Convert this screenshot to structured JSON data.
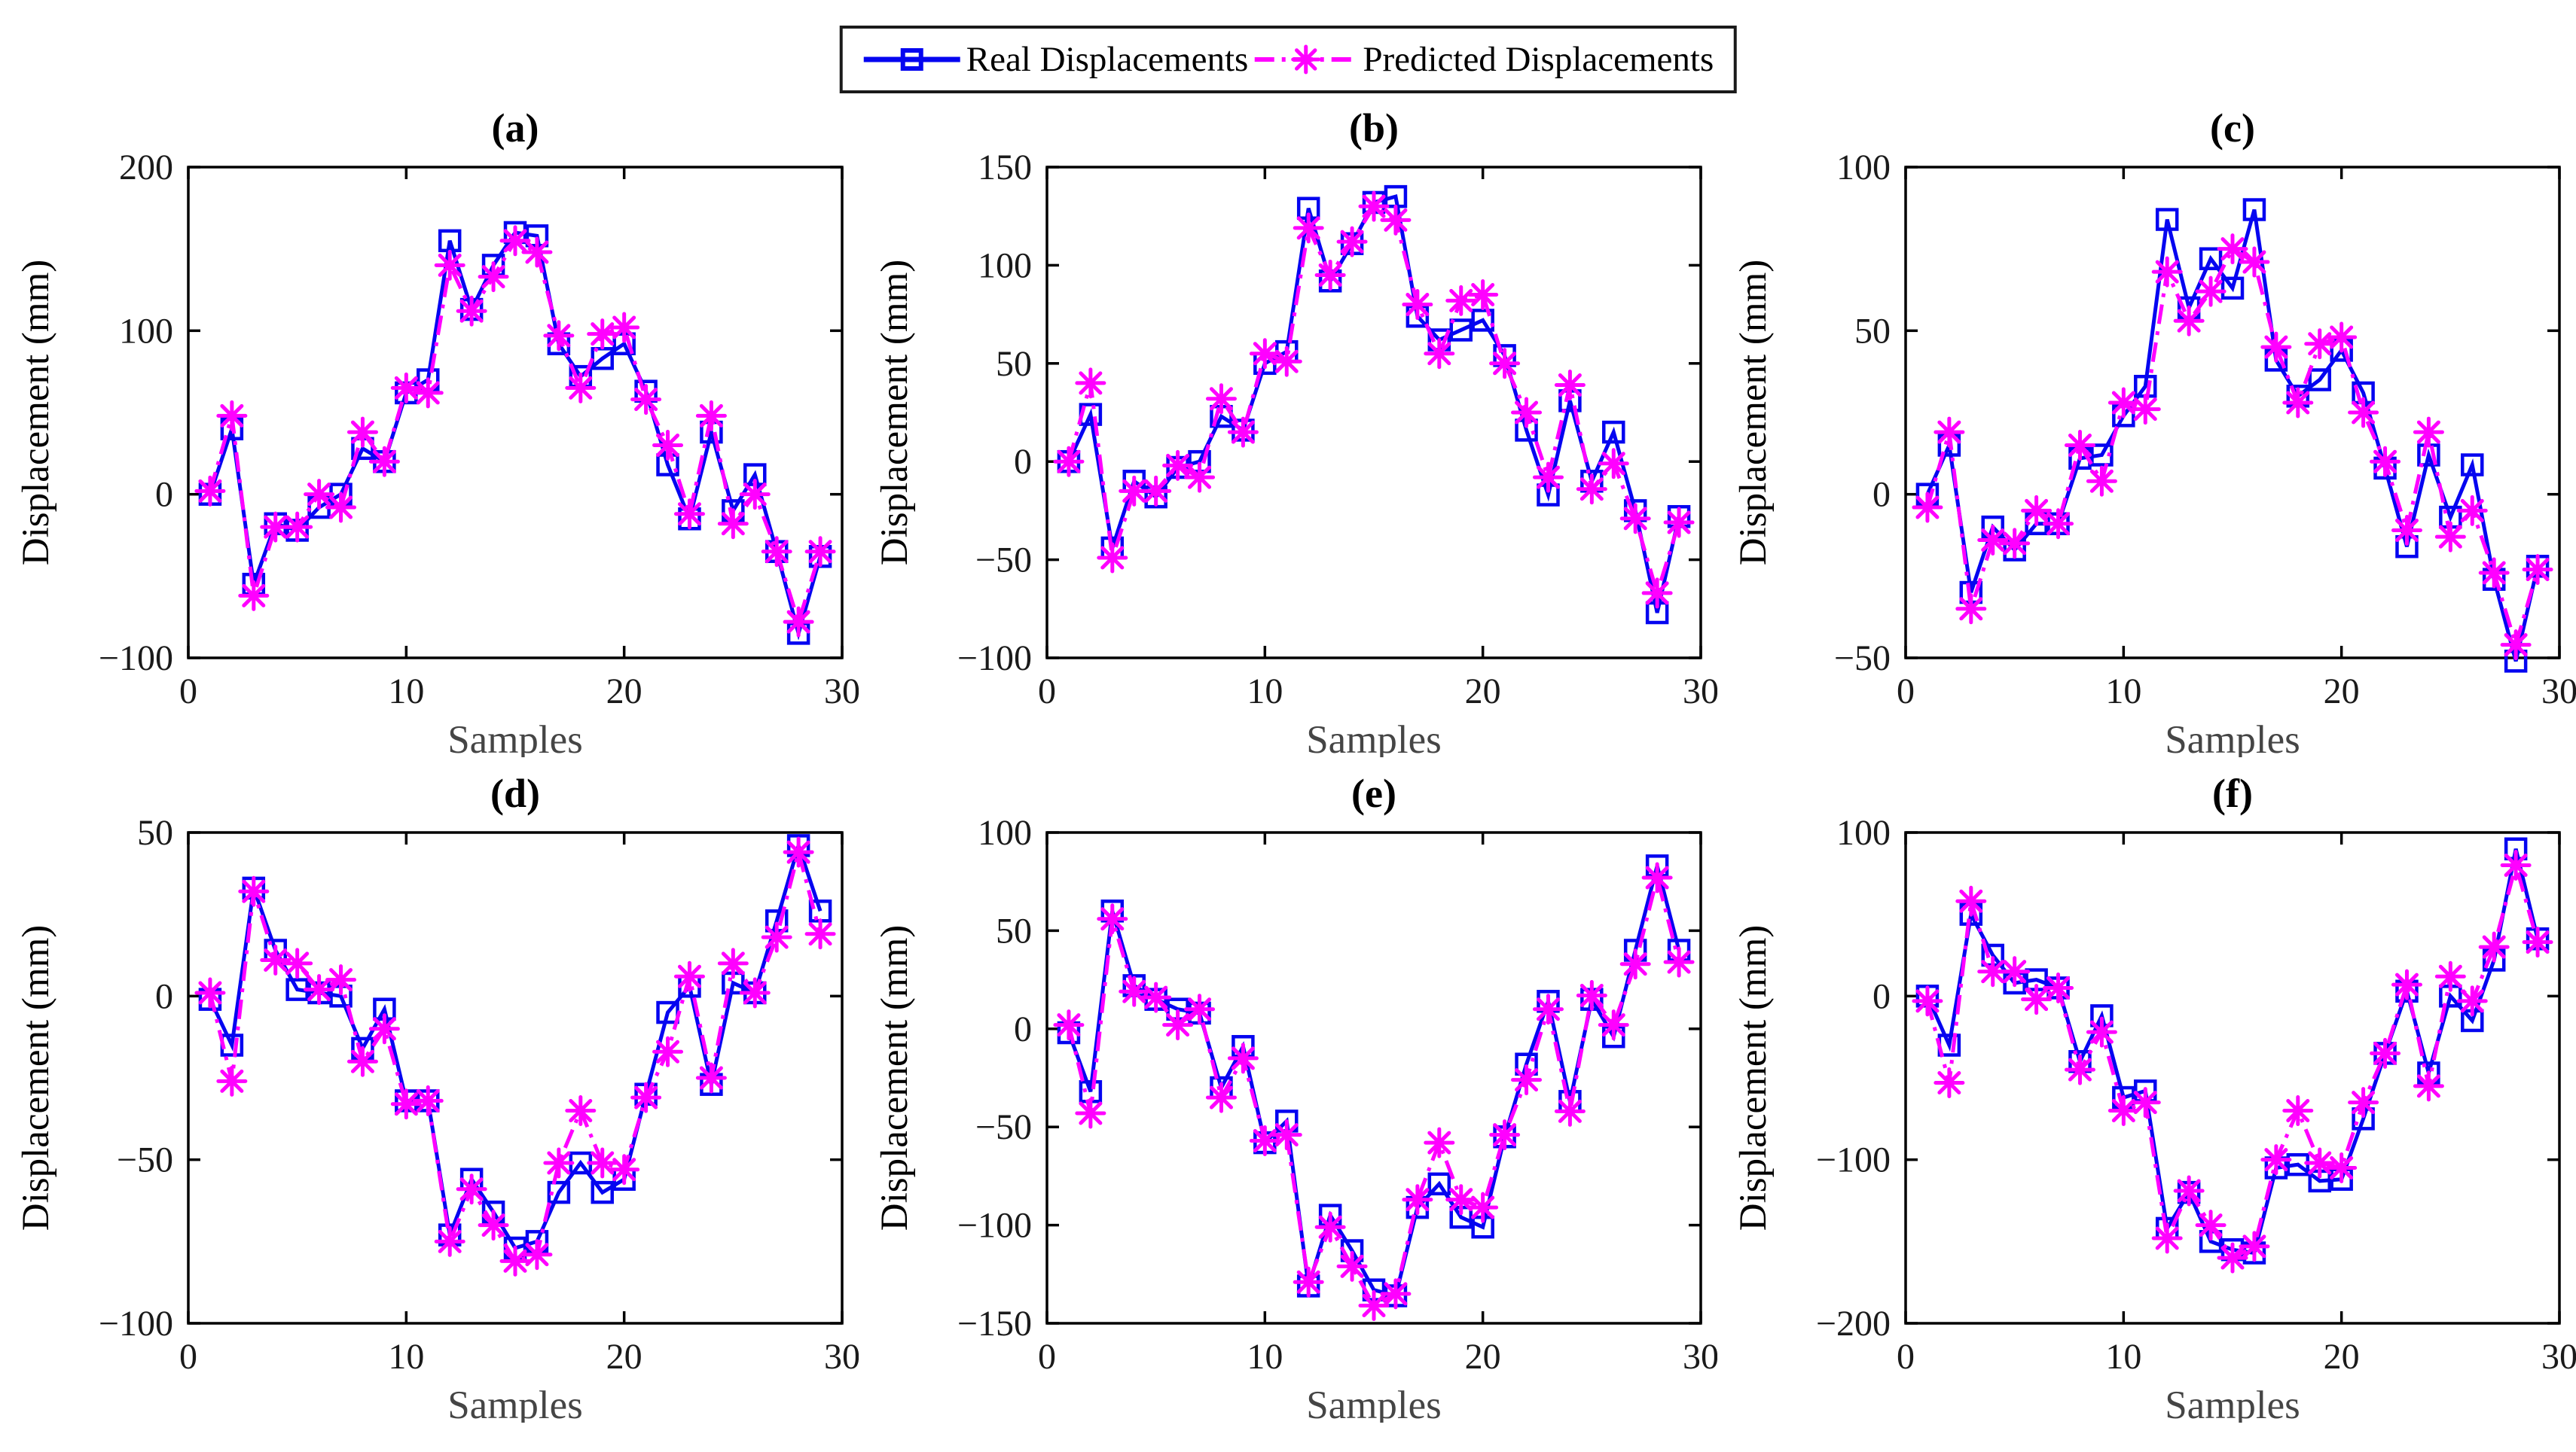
{
  "legend": {
    "items": [
      {
        "label": "Real Displacements",
        "series": "real",
        "line": "solid",
        "marker": "square"
      },
      {
        "label": "Predicted Displacements",
        "series": "predicted",
        "line": "dash-dot",
        "marker": "asterisk"
      }
    ]
  },
  "colors": {
    "real": "#0505f0",
    "predicted": "#ff00ff",
    "axis": "#000000",
    "tick_text": "#1a1a1a",
    "xlabel_text": "#454545"
  },
  "chart_data": [
    {
      "type": "line",
      "title": "(a)",
      "xlabel": "Samples",
      "ylabel": "Displacement (mm)",
      "xlim": [
        0,
        30
      ],
      "ylim": [
        -100,
        200
      ],
      "xticks": [
        0,
        10,
        20,
        30
      ],
      "yticks": [
        -100,
        0,
        100,
        200
      ],
      "x": [
        1,
        2,
        3,
        4,
        5,
        6,
        7,
        8,
        9,
        10,
        11,
        12,
        13,
        14,
        15,
        16,
        17,
        18,
        19,
        20,
        21,
        22,
        23,
        24,
        25,
        26,
        27,
        28,
        29
      ],
      "series": [
        {
          "name": "Real Displacements",
          "color_key": "real",
          "values": [
            0,
            40,
            -55,
            -18,
            -22,
            -8,
            0,
            28,
            20,
            62,
            70,
            155,
            113,
            140,
            160,
            158,
            92,
            72,
            83,
            92,
            63,
            18,
            -15,
            38,
            -10,
            12,
            -35,
            -85,
            -38
          ]
        },
        {
          "name": "Predicted Displacements",
          "color_key": "predicted",
          "values": [
            2,
            48,
            -62,
            -20,
            -20,
            0,
            -8,
            38,
            20,
            65,
            62,
            140,
            112,
            133,
            155,
            148,
            97,
            65,
            98,
            102,
            58,
            30,
            -12,
            48,
            -18,
            0,
            -35,
            -78,
            -35
          ]
        }
      ]
    },
    {
      "type": "line",
      "title": "(b)",
      "xlabel": "Samples",
      "ylabel": "Displacement (mm)",
      "xlim": [
        0,
        30
      ],
      "ylim": [
        -100,
        150
      ],
      "xticks": [
        0,
        10,
        20,
        30
      ],
      "yticks": [
        -100,
        -50,
        0,
        50,
        100,
        150
      ],
      "x": [
        1,
        2,
        3,
        4,
        5,
        6,
        7,
        8,
        9,
        10,
        11,
        12,
        13,
        14,
        15,
        16,
        17,
        18,
        19,
        20,
        21,
        22,
        23,
        24,
        25,
        26,
        27,
        28,
        29
      ],
      "series": [
        {
          "name": "Real Displacements",
          "color_key": "real",
          "values": [
            0,
            24,
            -44,
            -10,
            -18,
            -3,
            0,
            23,
            16,
            50,
            56,
            129,
            92,
            111,
            132,
            135,
            74,
            62,
            67,
            72,
            54,
            16,
            -17,
            31,
            -10,
            15,
            -25,
            -77,
            -28
          ]
        },
        {
          "name": "Predicted Displacements",
          "color_key": "predicted",
          "values": [
            0,
            40,
            -49,
            -15,
            -15,
            -2,
            -8,
            32,
            15,
            55,
            51,
            119,
            95,
            112,
            130,
            123,
            80,
            55,
            82,
            85,
            50,
            25,
            -8,
            39,
            -14,
            -1,
            -29,
            -67,
            -31
          ]
        }
      ]
    },
    {
      "type": "line",
      "title": "(c)",
      "xlabel": "Samples",
      "ylabel": "Displacement (mm)",
      "xlim": [
        0,
        30
      ],
      "ylim": [
        -50,
        100
      ],
      "xticks": [
        0,
        10,
        20,
        30
      ],
      "yticks": [
        -50,
        0,
        50,
        100
      ],
      "x": [
        1,
        2,
        3,
        4,
        5,
        6,
        7,
        8,
        9,
        10,
        11,
        12,
        13,
        14,
        15,
        16,
        17,
        18,
        19,
        20,
        21,
        22,
        23,
        24,
        25,
        26,
        27,
        28,
        29
      ],
      "series": [
        {
          "name": "Real Displacements",
          "color_key": "real",
          "values": [
            0,
            15,
            -30,
            -10,
            -17,
            -9,
            -9,
            11,
            12,
            24,
            33,
            84,
            57,
            72,
            63,
            87,
            41,
            30,
            35,
            44,
            31,
            8,
            -16,
            12,
            -7,
            9,
            -26,
            -51,
            -22
          ]
        },
        {
          "name": "Predicted Displacements",
          "color_key": "predicted",
          "values": [
            -4,
            19,
            -35,
            -14,
            -15,
            -5,
            -9,
            15,
            4,
            28,
            26,
            68,
            53,
            62,
            75,
            71,
            45,
            28,
            46,
            48,
            25,
            10,
            -11,
            19,
            -13,
            -5,
            -24,
            -46,
            -23
          ]
        }
      ]
    },
    {
      "type": "line",
      "title": "(d)",
      "xlabel": "Samples",
      "ylabel": "Displacement (mm)",
      "xlim": [
        0,
        30
      ],
      "ylim": [
        -100,
        50
      ],
      "xticks": [
        0,
        10,
        20,
        30
      ],
      "yticks": [
        -100,
        -50,
        0,
        50
      ],
      "x": [
        1,
        2,
        3,
        4,
        5,
        6,
        7,
        8,
        9,
        10,
        11,
        12,
        13,
        14,
        15,
        16,
        17,
        18,
        19,
        20,
        21,
        22,
        23,
        24,
        25,
        26,
        27,
        28,
        29
      ],
      "series": [
        {
          "name": "Real Displacements",
          "color_key": "real",
          "values": [
            -1,
            -15,
            33,
            14,
            2,
            1,
            0,
            -16,
            -4,
            -32,
            -32,
            -73,
            -56,
            -66,
            -77,
            -75,
            -60,
            -51,
            -60,
            -56,
            -30,
            -5,
            3,
            -27,
            4,
            1,
            23,
            46,
            26
          ]
        },
        {
          "name": "Predicted Displacements",
          "color_key": "predicted",
          "values": [
            1,
            -26,
            32,
            11,
            10,
            2,
            5,
            -20,
            -10,
            -33,
            -32,
            -75,
            -59,
            -70,
            -81,
            -79,
            -51,
            -35,
            -51,
            -53,
            -31,
            -17,
            6,
            -25,
            10,
            1,
            18,
            44,
            19
          ]
        }
      ]
    },
    {
      "type": "line",
      "title": "(e)",
      "xlabel": "Samples",
      "ylabel": "Displacement (mm)",
      "xlim": [
        0,
        30
      ],
      "ylim": [
        -150,
        100
      ],
      "xticks": [
        0,
        10,
        20,
        30
      ],
      "yticks": [
        -150,
        -100,
        -50,
        0,
        50,
        100
      ],
      "x": [
        1,
        2,
        3,
        4,
        5,
        6,
        7,
        8,
        9,
        10,
        11,
        12,
        13,
        14,
        15,
        16,
        17,
        18,
        19,
        20,
        21,
        22,
        23,
        24,
        25,
        26,
        27,
        28,
        29
      ],
      "series": [
        {
          "name": "Real Displacements",
          "color_key": "real",
          "values": [
            -2,
            -32,
            60,
            22,
            15,
            10,
            8,
            -30,
            -9,
            -58,
            -47,
            -131,
            -95,
            -113,
            -133,
            -136,
            -91,
            -79,
            -96,
            -101,
            -55,
            -18,
            14,
            -37,
            15,
            -4,
            40,
            83,
            40
          ]
        },
        {
          "name": "Predicted Displacements",
          "color_key": "predicted",
          "values": [
            2,
            -43,
            56,
            19,
            16,
            2,
            10,
            -35,
            -15,
            -57,
            -54,
            -129,
            -101,
            -121,
            -141,
            -135,
            -87,
            -58,
            -87,
            -91,
            -54,
            -26,
            10,
            -42,
            17,
            2,
            33,
            77,
            34
          ]
        }
      ]
    },
    {
      "type": "line",
      "title": "(f)",
      "xlabel": "Samples",
      "ylabel": "Displacement (mm)",
      "xlim": [
        0,
        30
      ],
      "ylim": [
        -200,
        100
      ],
      "xticks": [
        0,
        10,
        20,
        30
      ],
      "yticks": [
        -200,
        -100,
        0,
        100
      ],
      "x": [
        1,
        2,
        3,
        4,
        5,
        6,
        7,
        8,
        9,
        10,
        11,
        12,
        13,
        14,
        15,
        16,
        17,
        18,
        19,
        20,
        21,
        22,
        23,
        24,
        25,
        26,
        27,
        28,
        29
      ],
      "series": [
        {
          "name": "Real Displacements",
          "color_key": "real",
          "values": [
            0,
            -30,
            50,
            25,
            8,
            10,
            5,
            -40,
            -12,
            -62,
            -58,
            -142,
            -120,
            -150,
            -155,
            -157,
            -105,
            -103,
            -113,
            -112,
            -75,
            -35,
            3,
            -47,
            0,
            -15,
            22,
            90,
            35
          ]
        },
        {
          "name": "Predicted Displacements",
          "color_key": "predicted",
          "values": [
            -3,
            -53,
            58,
            15,
            15,
            -2,
            5,
            -45,
            -22,
            -70,
            -65,
            -148,
            -119,
            -140,
            -160,
            -153,
            -100,
            -70,
            -102,
            -105,
            -65,
            -35,
            7,
            -55,
            12,
            -3,
            30,
            80,
            33
          ]
        }
      ]
    }
  ]
}
